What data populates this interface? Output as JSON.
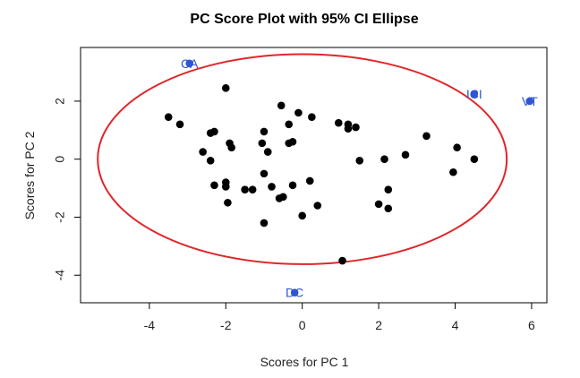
{
  "chart_data": {
    "type": "scatter",
    "title": "PC Score Plot with 95% CI Ellipse",
    "xlabel": "Scores for PC 1",
    "ylabel": "Scores for PC 2",
    "xlim": [
      -5.8,
      6.4
    ],
    "ylim": [
      -4.95,
      3.85
    ],
    "xticks": [
      -4,
      -2,
      0,
      2,
      4,
      6
    ],
    "yticks": [
      -4,
      -2,
      0,
      2
    ],
    "ellipse": {
      "center": [
        0,
        0
      ],
      "semi_axis_x": 5.35,
      "semi_axis_y": 3.62,
      "color": "#e0262b"
    },
    "point_color": "#000000",
    "label_color": "#2f55d4",
    "points": [
      [
        -3.5,
        1.45
      ],
      [
        -3.2,
        1.2
      ],
      [
        -2.6,
        0.25
      ],
      [
        -2.3,
        0.95
      ],
      [
        -2.4,
        0.9
      ],
      [
        -2.0,
        2.45
      ],
      [
        -1.9,
        0.55
      ],
      [
        -1.85,
        0.4
      ],
      [
        -2.4,
        -0.05
      ],
      [
        -2.3,
        -0.9
      ],
      [
        -2.0,
        -0.8
      ],
      [
        -2.0,
        -0.95
      ],
      [
        -1.95,
        -1.5
      ],
      [
        -1.5,
        -1.05
      ],
      [
        -1.3,
        -1.05
      ],
      [
        -1.05,
        0.55
      ],
      [
        -1.0,
        0.95
      ],
      [
        -0.9,
        0.25
      ],
      [
        -1.0,
        -0.5
      ],
      [
        -0.8,
        -0.95
      ],
      [
        -1.0,
        -2.2
      ],
      [
        -0.6,
        -1.35
      ],
      [
        -0.5,
        -1.3
      ],
      [
        -0.55,
        1.85
      ],
      [
        -0.35,
        1.2
      ],
      [
        -0.35,
        0.55
      ],
      [
        -0.25,
        0.6
      ],
      [
        -0.25,
        -0.9
      ],
      [
        -0.1,
        1.6
      ],
      [
        0.25,
        1.45
      ],
      [
        0.2,
        -0.75
      ],
      [
        0.0,
        -1.95
      ],
      [
        0.4,
        -1.6
      ],
      [
        0.95,
        1.25
      ],
      [
        1.2,
        1.2
      ],
      [
        1.2,
        1.05
      ],
      [
        1.4,
        1.1
      ],
      [
        1.5,
        -0.05
      ],
      [
        1.05,
        -3.5
      ],
      [
        2.0,
        -1.55
      ],
      [
        2.15,
        0.0
      ],
      [
        2.25,
        -1.05
      ],
      [
        2.25,
        -1.7
      ],
      [
        2.7,
        0.15
      ],
      [
        3.25,
        0.8
      ],
      [
        3.95,
        -0.45
      ],
      [
        4.05,
        0.4
      ],
      [
        4.5,
        0.0
      ]
    ],
    "labeled_points": [
      {
        "x": -2.95,
        "y": 3.3,
        "label": "CA"
      },
      {
        "x": 4.5,
        "y": 2.25,
        "label": "ICI"
      },
      {
        "x": 5.95,
        "y": 2.0,
        "label": "VT"
      },
      {
        "x": -0.2,
        "y": -4.6,
        "label": "DC"
      }
    ]
  }
}
